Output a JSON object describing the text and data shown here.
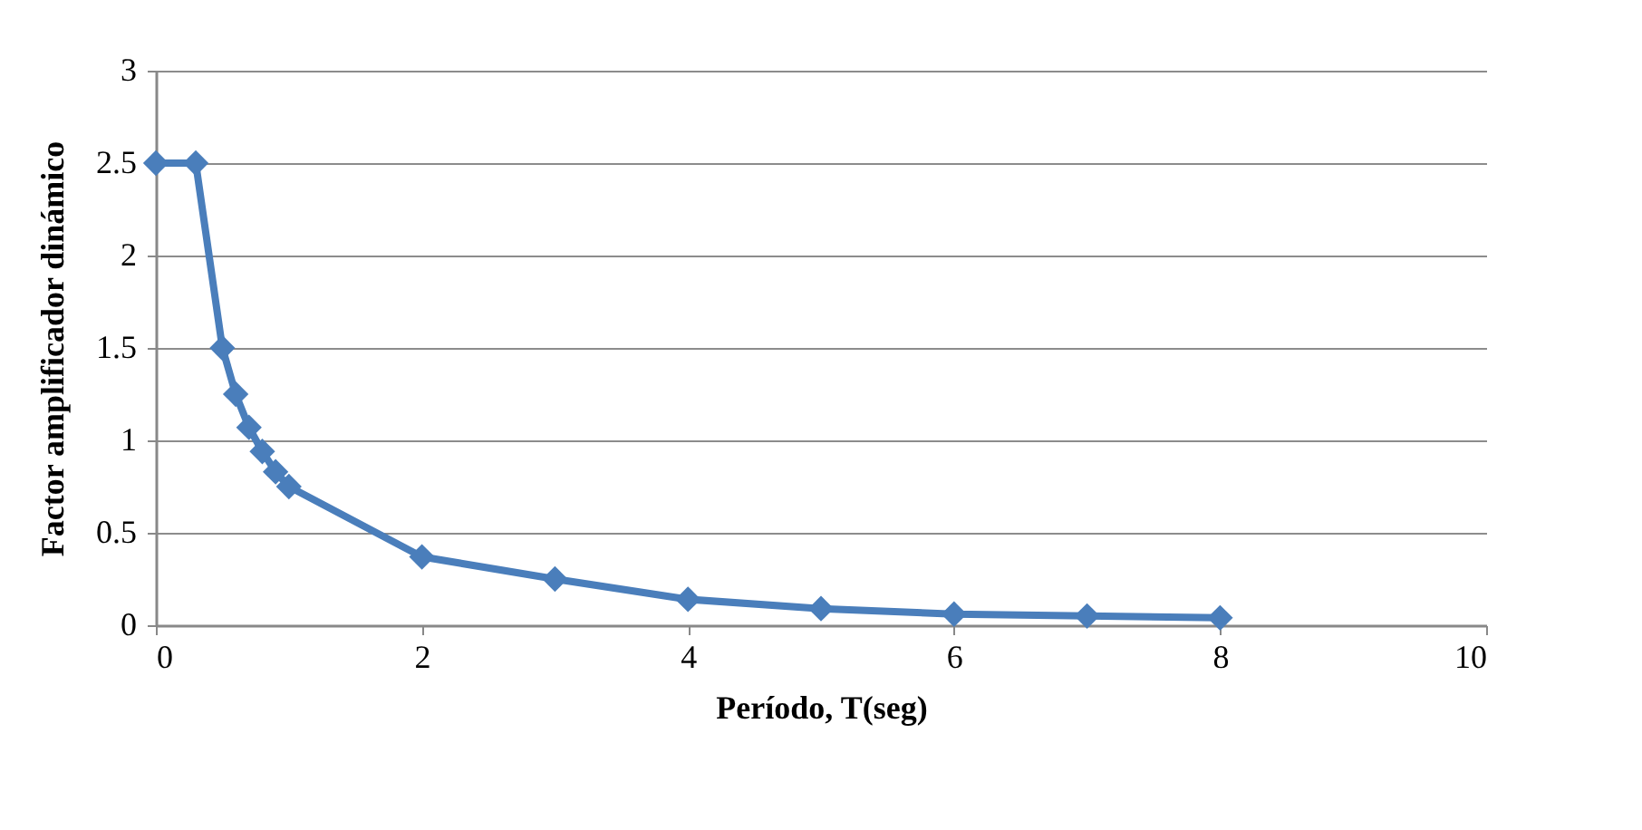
{
  "chart_data": {
    "type": "line",
    "xlabel": "Período, T(seg)",
    "ylabel": "Factor amplificador dinámico",
    "x": [
      0,
      0.3,
      0.5,
      0.6,
      0.7,
      0.8,
      0.9,
      1,
      2,
      3,
      4,
      5,
      6,
      7,
      8
    ],
    "series": [
      {
        "color": "#4a7ebb",
        "values": [
          2.5,
          2.5,
          1.5,
          1.25,
          1.07,
          0.94,
          0.83,
          0.75,
          0.37,
          0.25,
          0.14,
          0.09,
          0.06,
          0.05,
          0.04
        ]
      }
    ],
    "xlim": [
      0,
      10
    ],
    "xticks": [
      0,
      2,
      4,
      6,
      8,
      10
    ],
    "ylim": [
      0,
      3
    ],
    "yticks": [
      0,
      0.5,
      1,
      1.5,
      2,
      2.5,
      3
    ],
    "grid": "y",
    "marker": "diamond",
    "line_style": "solid"
  }
}
